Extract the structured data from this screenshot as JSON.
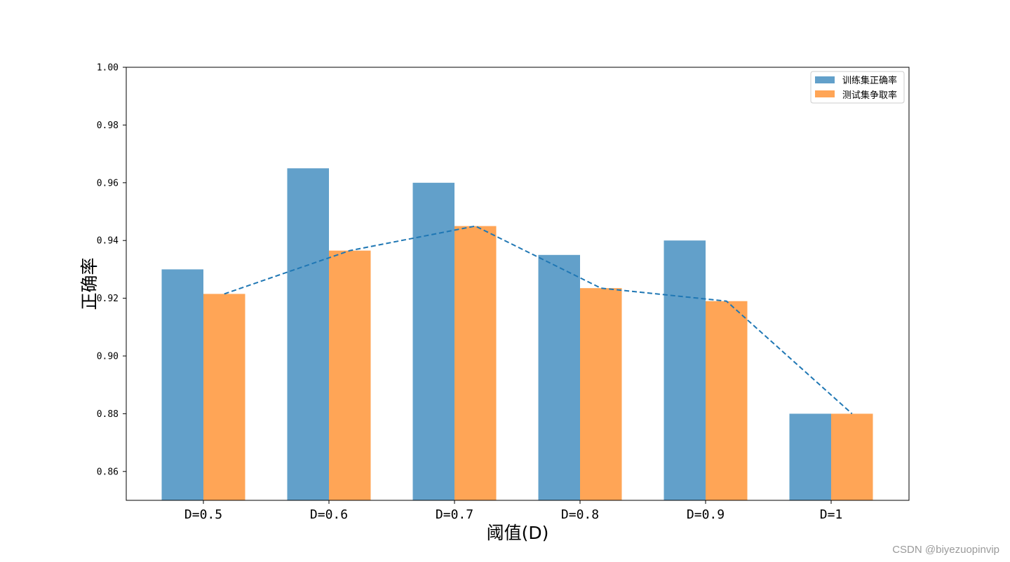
{
  "chart_data": {
    "type": "bar",
    "categories": [
      "D=0.5",
      "D=0.6",
      "D=0.7",
      "D=0.8",
      "D=0.9",
      "D=1"
    ],
    "series": [
      {
        "name": "训练集正确率",
        "values": [
          0.93,
          0.965,
          0.96,
          0.935,
          0.94,
          0.88
        ],
        "color": "#1f77b4",
        "opacity": 0.7
      },
      {
        "name": "测试集争取率",
        "values": [
          0.9215,
          0.9365,
          0.945,
          0.9235,
          0.919,
          0.88
        ],
        "color": "#ff7f0e",
        "opacity": 0.7
      }
    ],
    "line": {
      "style": "dashed",
      "color": "#1f77b4",
      "values": [
        0.9215,
        0.9365,
        0.945,
        0.9235,
        0.919,
        0.88
      ]
    },
    "xlabel": "阈值(D)",
    "ylabel": "正确率",
    "ylim": [
      0.85,
      1.0
    ],
    "yticks": [
      "0.86",
      "0.88",
      "0.90",
      "0.92",
      "0.94",
      "0.96",
      "0.98",
      "1.00"
    ],
    "legend_position": "top-right",
    "grid": false
  },
  "watermark": "CSDN @biyezuopinvip"
}
